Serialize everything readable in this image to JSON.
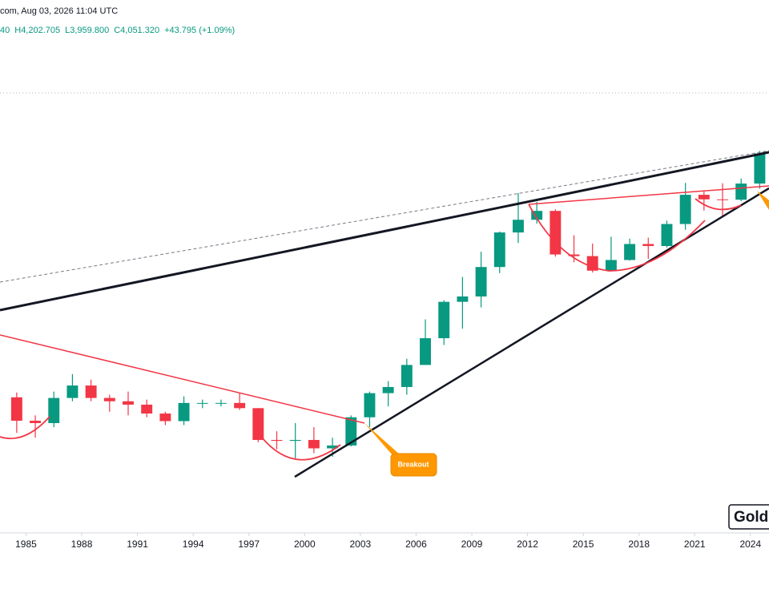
{
  "header": {
    "source": "com, Aug 03, 2026 11:04 UTC",
    "ohlc": [
      "40",
      "H4,202.705",
      "L3,959.800",
      "C4,051.320",
      "+43.795 (+1.09%)"
    ]
  },
  "chart_data": {
    "type": "candlestick",
    "annotation": "Breakout",
    "watermark": "Gold",
    "log_scale": true,
    "up_color": "#089981",
    "down_color": "#f23645",
    "x": [
      1984,
      1985,
      1986,
      1987,
      1988,
      1989,
      1990,
      1991,
      1992,
      1993,
      1994,
      1995,
      1996,
      1997,
      1998,
      1999,
      2000,
      2001,
      2002,
      2003,
      2004,
      2005,
      2006,
      2007,
      2008,
      2009,
      2010,
      2011,
      2012,
      2013,
      2014,
      2015,
      2016,
      2017,
      2018,
      2019,
      2020,
      2021,
      2022,
      2023,
      2024
    ],
    "open": [
      402,
      336,
      330,
      400,
      440,
      400,
      390,
      380,
      355,
      335,
      385,
      385,
      385,
      370,
      290,
      288,
      290,
      272,
      278,
      345,
      415,
      435,
      515,
      632,
      835,
      870,
      1090,
      1420,
      1565,
      1675,
      1200,
      1185,
      1060,
      1150,
      1300,
      1280,
      1515,
      1895,
      1830,
      1825,
      2065
    ],
    "high": [
      417,
      350,
      420,
      480,
      460,
      410,
      420,
      395,
      360,
      405,
      395,
      395,
      415,
      370,
      310,
      330,
      320,
      295,
      350,
      420,
      455,
      540,
      730,
      845,
      1010,
      1225,
      1430,
      1920,
      1795,
      1695,
      1390,
      1305,
      1375,
      1355,
      1365,
      1555,
      2075,
      1960,
      2070,
      2145,
      2650
    ],
    "low": [
      306,
      295,
      320,
      390,
      390,
      360,
      350,
      345,
      325,
      325,
      370,
      375,
      365,
      285,
      270,
      252,
      262,
      255,
      276,
      320,
      375,
      410,
      515,
      600,
      680,
      800,
      1040,
      1310,
      1520,
      1180,
      1130,
      1045,
      1060,
      1145,
      1160,
      1265,
      1450,
      1680,
      1615,
      1805,
      1985
    ],
    "close": [
      336,
      330,
      400,
      440,
      400,
      390,
      380,
      355,
      335,
      385,
      385,
      385,
      370,
      290,
      288,
      290,
      272,
      278,
      345,
      415,
      435,
      515,
      632,
      835,
      870,
      1090,
      1420,
      1565,
      1675,
      1200,
      1185,
      1060,
      1150,
      1300,
      1280,
      1515,
      1895,
      1830,
      1825,
      2065,
      2600
    ],
    "xlim": [
      1983.6,
      2025
    ],
    "xticks": [
      1985,
      1988,
      1991,
      1994,
      1997,
      2000,
      2003,
      2006,
      2009,
      2012,
      2015,
      2018,
      2021,
      2024
    ],
    "ylim": [
      160,
      3600
    ]
  }
}
